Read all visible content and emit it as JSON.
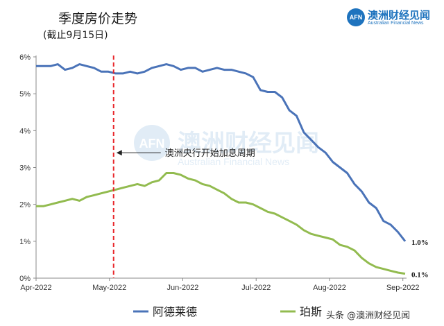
{
  "header": {
    "title": "季度房价走势",
    "subtitle": "(截止9月15日)"
  },
  "logo": {
    "badge": "AFN",
    "cn": "澳洲财经见闻",
    "en": "Australian Financial News"
  },
  "watermark": {
    "badge": "AFN",
    "cn": "澳洲财经见闻",
    "en": "Australian Financial News"
  },
  "footer": {
    "credit": "头条 @澳洲财经见闻"
  },
  "chart_data": {
    "type": "line",
    "x_ticks": [
      "Apr-2022",
      "May-2022",
      "Jun-2022",
      "Jul-2022",
      "Aug-2022",
      "Sep-2022"
    ],
    "y_ticks": [
      "0%",
      "1%",
      "2%",
      "3%",
      "4%",
      "5%",
      "6%"
    ],
    "ylim": [
      0,
      6
    ],
    "series": [
      {
        "name": "阿德莱德",
        "color": "#4a73b8",
        "end_label": "1.0%",
        "values": [
          5.75,
          5.75,
          5.75,
          5.8,
          5.65,
          5.7,
          5.8,
          5.75,
          5.7,
          5.6,
          5.6,
          5.55,
          5.55,
          5.6,
          5.55,
          5.6,
          5.7,
          5.75,
          5.8,
          5.75,
          5.65,
          5.7,
          5.7,
          5.6,
          5.65,
          5.7,
          5.65,
          5.65,
          5.6,
          5.55,
          5.45,
          5.1,
          5.05,
          5.05,
          4.9,
          4.55,
          4.4,
          3.95,
          3.75,
          3.55,
          3.4,
          3.15,
          3.0,
          2.85,
          2.55,
          2.35,
          2.05,
          1.9,
          1.55,
          1.45,
          1.25,
          1.0
        ]
      },
      {
        "name": "珀斯",
        "color": "#92bb4f",
        "end_label": "0.1%",
        "values": [
          1.95,
          1.95,
          2.0,
          2.05,
          2.1,
          2.15,
          2.1,
          2.2,
          2.25,
          2.3,
          2.35,
          2.4,
          2.45,
          2.5,
          2.55,
          2.5,
          2.6,
          2.65,
          2.85,
          2.85,
          2.8,
          2.7,
          2.65,
          2.55,
          2.5,
          2.4,
          2.3,
          2.15,
          2.05,
          2.05,
          2.0,
          1.9,
          1.8,
          1.75,
          1.65,
          1.55,
          1.45,
          1.3,
          1.2,
          1.15,
          1.1,
          1.05,
          0.9,
          0.85,
          0.75,
          0.55,
          0.4,
          0.3,
          0.25,
          0.2,
          0.15,
          0.12
        ]
      }
    ],
    "annotation": {
      "text": "澳洲央行开始加息周期",
      "x_category": "May-2022",
      "y": 3.4,
      "line_color": "#e8262a"
    },
    "grid": false,
    "legend": "bottom"
  }
}
